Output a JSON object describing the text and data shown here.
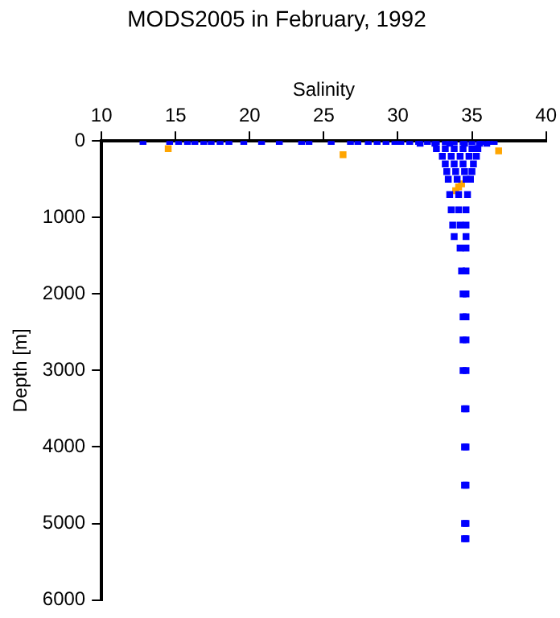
{
  "chart_data": {
    "type": "scatter",
    "title": "MODS2005 in February, 1992",
    "xlabel": "Salinity",
    "ylabel": "Depth [m]",
    "xlim": [
      10,
      40
    ],
    "xticks": [
      10,
      15,
      20,
      25,
      30,
      35,
      40
    ],
    "ylim": [
      6000,
      0
    ],
    "yticks": [
      0,
      1000,
      2000,
      3000,
      4000,
      5000,
      6000
    ],
    "grid": false,
    "legend": false,
    "marker": "square",
    "series": [
      {
        "color": "#0000ff",
        "x": [
          12.8,
          14.6,
          15.2,
          15.8,
          16.3,
          16.9,
          17.4,
          18.0,
          18.6,
          19.6,
          20.8,
          22.0,
          23.5,
          24.0,
          25.5,
          26.8,
          27.3,
          28.0,
          28.6,
          29.2,
          29.8,
          30.2,
          30.8,
          31.4,
          32.0,
          32.6,
          33.2,
          33.8,
          34.4,
          35.0,
          35.6,
          36.2,
          36.5,
          31.5,
          32.5,
          33.5,
          34.5,
          35.5,
          36.0,
          32.6,
          33.2,
          33.8,
          34.4,
          35.0,
          35.4,
          33.0,
          33.6,
          34.2,
          34.8,
          35.3,
          33.2,
          33.8,
          34.4,
          35.1,
          33.3,
          33.9,
          34.5,
          35.0,
          33.4,
          34.0,
          34.6,
          34.9,
          33.5,
          34.1,
          34.7,
          33.6,
          34.1,
          34.6,
          33.7,
          34.2,
          34.6,
          33.8,
          34.6,
          34.2,
          34.6,
          34.3,
          34.6,
          34.4,
          34.6,
          34.4,
          34.6,
          34.4,
          34.6,
          34.4,
          34.6,
          34.5,
          34.6,
          34.5,
          34.6,
          34.5,
          34.6,
          34.5,
          34.6,
          34.5,
          34.6
        ],
        "values": [
          5,
          5,
          5,
          5,
          5,
          5,
          5,
          5,
          5,
          5,
          5,
          5,
          5,
          5,
          5,
          5,
          5,
          5,
          5,
          5,
          5,
          5,
          5,
          5,
          5,
          5,
          5,
          5,
          5,
          5,
          5,
          5,
          5,
          30,
          30,
          30,
          30,
          30,
          30,
          100,
          100,
          100,
          100,
          100,
          100,
          200,
          200,
          200,
          200,
          200,
          300,
          300,
          300,
          300,
          400,
          400,
          400,
          400,
          500,
          500,
          500,
          500,
          700,
          700,
          700,
          900,
          900,
          900,
          1100,
          1100,
          1100,
          1250,
          1250,
          1400,
          1400,
          1700,
          1700,
          2000,
          2000,
          2300,
          2300,
          2600,
          2600,
          3000,
          3000,
          3500,
          3500,
          4000,
          4000,
          4500,
          4500,
          5000,
          5000,
          5200,
          5200
        ]
      },
      {
        "color": "#ffa500",
        "x": [
          14.5,
          26.3,
          36.8,
          33.9,
          34.1,
          34.3
        ],
        "values": [
          100,
          180,
          130,
          650,
          600,
          560
        ]
      }
    ]
  }
}
